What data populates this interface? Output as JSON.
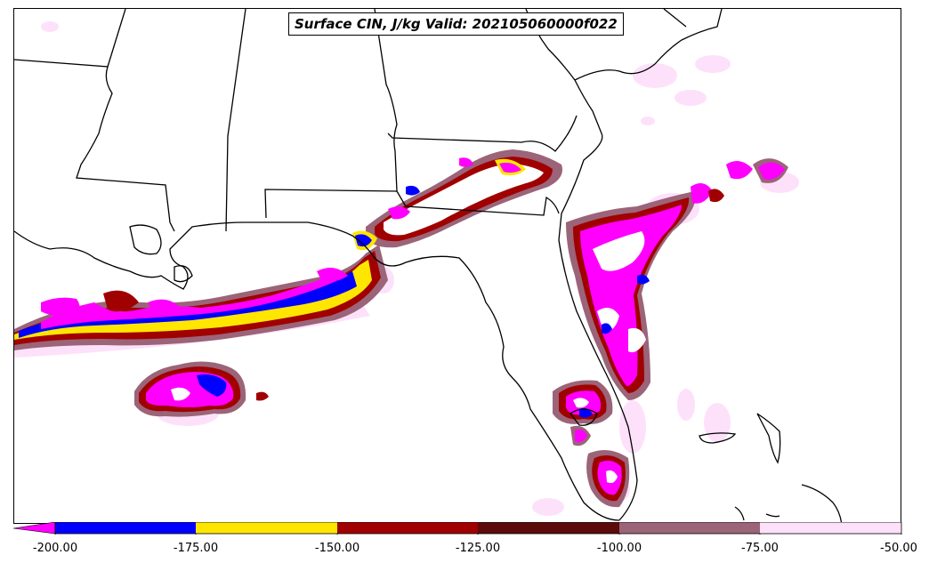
{
  "title": "Surface CIN, J/kg Valid: 202105060000f022",
  "colorbar": {
    "ticks": [
      "-200.00",
      "-175.00",
      "-150.00",
      "-125.00",
      "-100.00",
      "-75.00",
      "-50.00"
    ],
    "bins": [
      {
        "from": -200,
        "to": -175,
        "color": "#0000ff"
      },
      {
        "from": -175,
        "to": -150,
        "color": "#ffe600"
      },
      {
        "from": -150,
        "to": -125,
        "color": "#a00000"
      },
      {
        "from": -125,
        "to": -100,
        "color": "#5c0a0a"
      },
      {
        "from": -100,
        "to": -75,
        "color": "#9b6478"
      },
      {
        "from": -75,
        "to": -50,
        "color": "#fde1fa"
      }
    ],
    "extend_min_color": "#ff00ff"
  },
  "colors": {
    "very_low": "#ff00ff",
    "blue": "#0000ff",
    "yellow": "#ffe600",
    "red": "#a00000",
    "dark_red": "#5c0a0a",
    "mauve": "#9b6478",
    "light_pink": "#fde1fa",
    "coast_line": "#000000"
  }
}
